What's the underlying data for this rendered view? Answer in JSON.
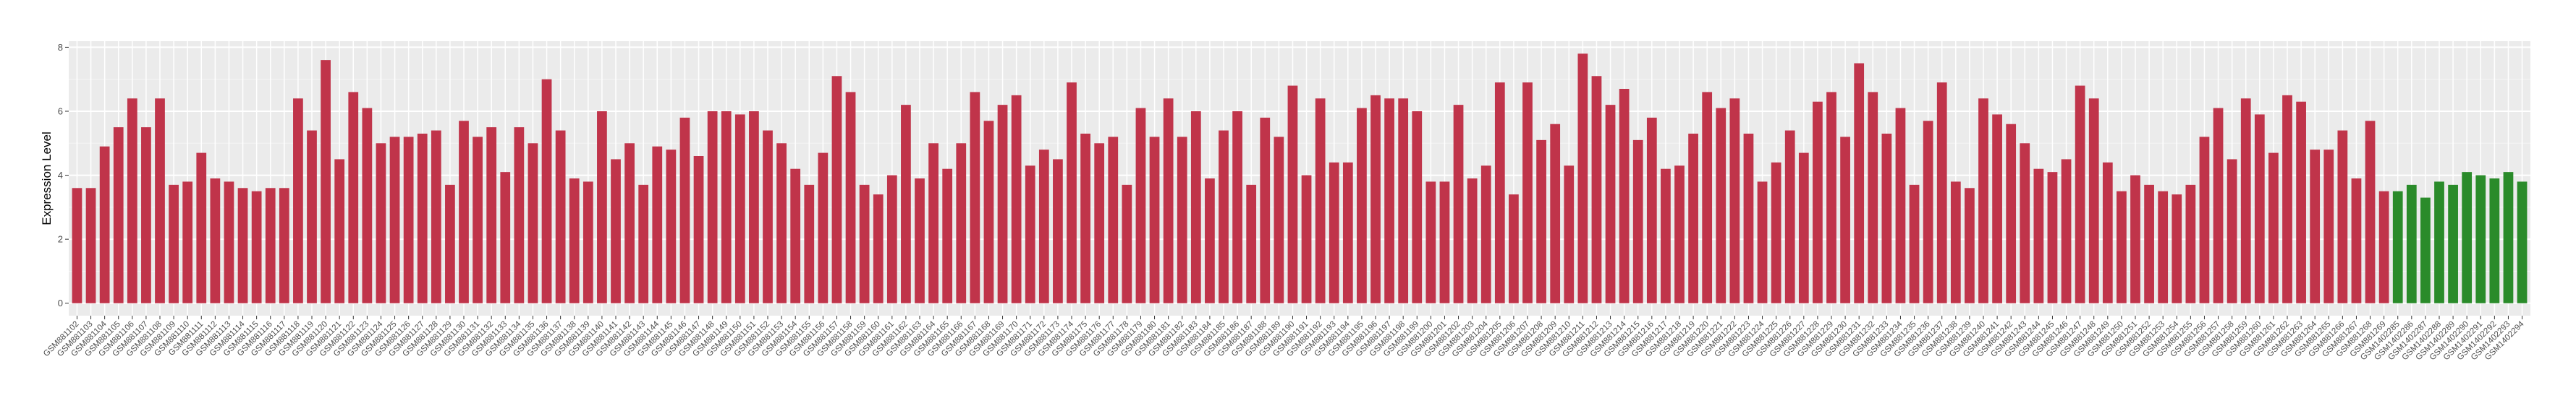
{
  "chart_data": {
    "type": "bar",
    "ylabel": "Expression Level",
    "categories": [
      "GSM881102",
      "GSM881103",
      "GSM881104",
      "GSM881105",
      "GSM881106",
      "GSM881107",
      "GSM881108",
      "GSM881109",
      "GSM881110",
      "GSM881111",
      "GSM881112",
      "GSM881113",
      "GSM881114",
      "GSM881115",
      "GSM881116",
      "GSM881117",
      "GSM881118",
      "GSM881119",
      "GSM881120",
      "GSM881121",
      "GSM881122",
      "GSM881123",
      "GSM881124",
      "GSM881125",
      "GSM881126",
      "GSM881127",
      "GSM881128",
      "GSM881129",
      "GSM881130",
      "GSM881131",
      "GSM881132",
      "GSM881133",
      "GSM881134",
      "GSM881135",
      "GSM881136",
      "GSM881137",
      "GSM881138",
      "GSM881139",
      "GSM881140",
      "GSM881141",
      "GSM881142",
      "GSM881143",
      "GSM881144",
      "GSM881145",
      "GSM881146",
      "GSM881147",
      "GSM881148",
      "GSM881149",
      "GSM881150",
      "GSM881151",
      "GSM881152",
      "GSM881153",
      "GSM881154",
      "GSM881155",
      "GSM881156",
      "GSM881157",
      "GSM881158",
      "GSM881159",
      "GSM881160",
      "GSM881161",
      "GSM881162",
      "GSM881163",
      "GSM881164",
      "GSM881165",
      "GSM881166",
      "GSM881167",
      "GSM881168",
      "GSM881169",
      "GSM881170",
      "GSM881171",
      "GSM881172",
      "GSM881173",
      "GSM881174",
      "GSM881175",
      "GSM881176",
      "GSM881177",
      "GSM881178",
      "GSM881179",
      "GSM881180",
      "GSM881181",
      "GSM881182",
      "GSM881183",
      "GSM881184",
      "GSM881185",
      "GSM881186",
      "GSM881187",
      "GSM881188",
      "GSM881189",
      "GSM881190",
      "GSM881191",
      "GSM881192",
      "GSM881193",
      "GSM881194",
      "GSM881195",
      "GSM881196",
      "GSM881197",
      "GSM881198",
      "GSM881199",
      "GSM881200",
      "GSM881201",
      "GSM881202",
      "GSM881203",
      "GSM881204",
      "GSM881205",
      "GSM881206",
      "GSM881207",
      "GSM881208",
      "GSM881209",
      "GSM881210",
      "GSM881211",
      "GSM881212",
      "GSM881213",
      "GSM881214",
      "GSM881215",
      "GSM881216",
      "GSM881217",
      "GSM881218",
      "GSM881219",
      "GSM881220",
      "GSM881221",
      "GSM881222",
      "GSM881223",
      "GSM881224",
      "GSM881225",
      "GSM881226",
      "GSM881227",
      "GSM881228",
      "GSM881229",
      "GSM881230",
      "GSM881231",
      "GSM881232",
      "GSM881233",
      "GSM881234",
      "GSM881235",
      "GSM881236",
      "GSM881237",
      "GSM881238",
      "GSM881239",
      "GSM881240",
      "GSM881241",
      "GSM881242",
      "GSM881243",
      "GSM881244",
      "GSM881245",
      "GSM881246",
      "GSM881247",
      "GSM881248",
      "GSM881249",
      "GSM881250",
      "GSM881251",
      "GSM881252",
      "GSM881253",
      "GSM881254",
      "GSM881255",
      "GSM881256",
      "GSM881257",
      "GSM881258",
      "GSM881259",
      "GSM881260",
      "GSM881261",
      "GSM881262",
      "GSM881263",
      "GSM881264",
      "GSM881265",
      "GSM881266",
      "GSM881267",
      "GSM881268",
      "GSM881269",
      "GSM1402285",
      "GSM1402286",
      "GSM1402287",
      "GSM1402288",
      "GSM1402289",
      "GSM1402290",
      "GSM1402291",
      "GSM1402292",
      "GSM1402293",
      "GSM1402294"
    ],
    "series": [
      {
        "color": "#c0344a",
        "values": [
          3.6,
          3.6,
          4.9,
          5.5,
          6.4,
          5.5,
          6.4,
          3.7,
          3.8,
          4.7,
          3.9,
          3.8,
          3.6,
          3.5,
          3.6,
          3.6,
          6.4,
          5.4,
          7.6,
          4.5,
          6.6,
          6.1,
          5.0,
          5.2,
          5.2,
          5.3,
          5.4,
          3.7,
          5.7,
          5.2,
          5.5,
          4.1,
          5.5,
          5.0,
          7.0,
          5.4,
          3.9,
          3.8,
          6.0,
          4.5,
          5.0,
          3.7,
          4.9,
          4.8,
          5.8,
          4.6,
          6.0,
          6.0,
          5.9,
          6.0,
          5.4,
          5.0,
          4.2,
          3.7,
          4.7,
          7.1,
          6.6,
          3.7,
          3.4,
          4.0,
          6.2,
          3.9,
          5.0,
          4.2,
          5.0,
          6.6,
          5.7,
          6.2,
          6.5,
          4.3,
          4.8,
          4.5,
          6.9,
          5.3,
          5.0,
          5.2,
          3.7,
          6.1,
          5.2,
          6.4,
          5.2,
          6.0,
          3.9,
          5.4,
          6.0,
          3.7,
          5.8,
          5.2,
          6.8,
          4.0,
          6.4,
          4.4,
          4.4,
          6.1,
          6.5,
          6.4,
          6.4,
          6.0,
          3.8,
          3.8,
          6.2,
          3.9,
          4.3,
          6.9,
          3.4,
          6.9,
          5.1,
          5.6,
          4.3,
          7.8,
          7.1,
          6.2,
          6.7,
          5.1,
          5.8,
          4.2,
          4.3,
          5.3,
          6.6,
          6.1,
          6.4,
          5.3,
          3.8,
          4.4,
          5.4,
          4.7,
          6.3,
          6.6,
          5.2,
          7.5,
          6.6,
          5.3,
          6.1,
          3.7,
          5.7,
          6.9,
          3.8,
          3.6,
          6.4,
          5.9,
          5.6,
          5.0,
          4.2,
          4.1,
          4.5,
          6.8,
          6.4,
          4.4,
          3.5,
          4.0,
          3.7,
          3.5,
          3.4,
          3.7,
          5.2,
          6.1,
          4.5,
          6.4,
          5.9,
          4.7,
          6.5,
          6.3,
          4.8,
          4.8,
          5.4,
          3.9,
          5.7,
          3.5,
          null,
          null,
          null,
          null,
          null,
          null,
          null,
          null,
          null,
          null
        ]
      },
      {
        "color": "#2a8b2a",
        "values": [
          null,
          null,
          null,
          null,
          null,
          null,
          null,
          null,
          null,
          null,
          null,
          null,
          null,
          null,
          null,
          null,
          null,
          null,
          null,
          null,
          null,
          null,
          null,
          null,
          null,
          null,
          null,
          null,
          null,
          null,
          null,
          null,
          null,
          null,
          null,
          null,
          null,
          null,
          null,
          null,
          null,
          null,
          null,
          null,
          null,
          null,
          null,
          null,
          null,
          null,
          null,
          null,
          null,
          null,
          null,
          null,
          null,
          null,
          null,
          null,
          null,
          null,
          null,
          null,
          null,
          null,
          null,
          null,
          null,
          null,
          null,
          null,
          null,
          null,
          null,
          null,
          null,
          null,
          null,
          null,
          null,
          null,
          null,
          null,
          null,
          null,
          null,
          null,
          null,
          null,
          null,
          null,
          null,
          null,
          null,
          null,
          null,
          null,
          null,
          null,
          null,
          null,
          null,
          null,
          null,
          null,
          null,
          null,
          null,
          null,
          null,
          null,
          null,
          null,
          null,
          null,
          null,
          null,
          null,
          null,
          null,
          null,
          null,
          null,
          null,
          null,
          null,
          null,
          null,
          null,
          null,
          null,
          null,
          null,
          null,
          null,
          null,
          null,
          null,
          null,
          null,
          null,
          null,
          null,
          null,
          null,
          null,
          null,
          null,
          null,
          null,
          null,
          null,
          null,
          null,
          null,
          null,
          null,
          null,
          null,
          null,
          null,
          null,
          null,
          null,
          null,
          null,
          null,
          3.5,
          3.7,
          3.3,
          3.8,
          3.7,
          4.1,
          4.0,
          3.9,
          4.1,
          3.8
        ]
      }
    ],
    "ylim": [
      -0.39,
      8.19
    ],
    "yticks": [
      0,
      2,
      4,
      6,
      8
    ],
    "grid": true
  }
}
